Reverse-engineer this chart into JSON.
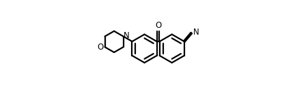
{
  "bg_color": "#ffffff",
  "line_color": "#000000",
  "line_width": 1.6,
  "fig_width": 4.32,
  "fig_height": 1.34,
  "dpi": 100,
  "xlim": [
    -5,
    115
  ],
  "ylim": [
    5,
    95
  ]
}
